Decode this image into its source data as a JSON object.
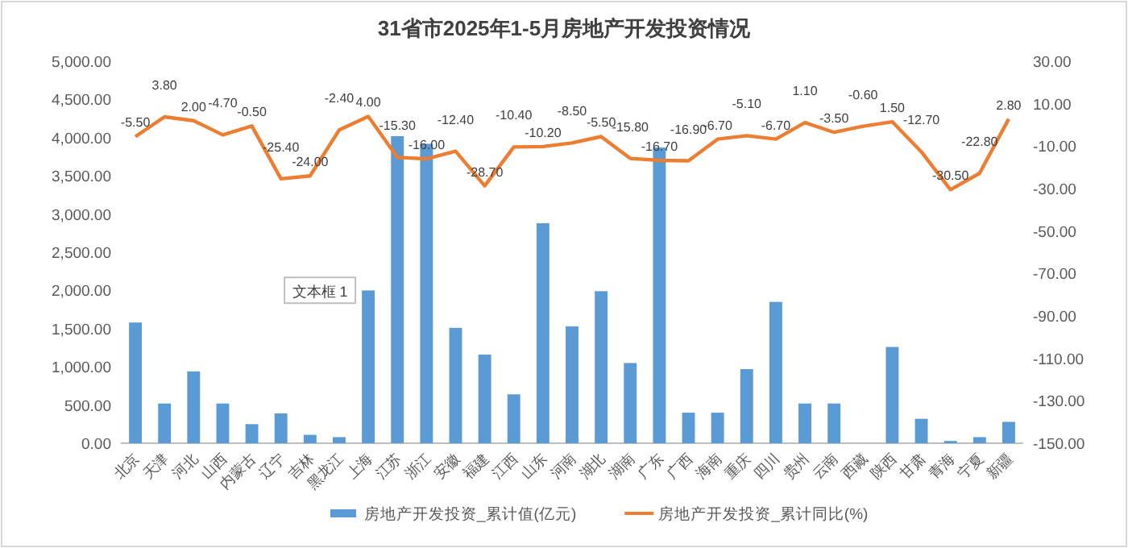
{
  "chart_data": {
    "type": "bar",
    "title": "31省市2025年1-5月房地产开发投资情况",
    "categories": [
      "北京",
      "天津",
      "河北",
      "山西",
      "内蒙古",
      "辽宁",
      "吉林",
      "黑龙江",
      "上海",
      "江苏",
      "浙江",
      "安徽",
      "福建",
      "江西",
      "山东",
      "河南",
      "湖北",
      "湖南",
      "广东",
      "广西",
      "海南",
      "重庆",
      "四川",
      "贵州",
      "云南",
      "西藏",
      "陕西",
      "甘肃",
      "青海",
      "宁夏",
      "新疆"
    ],
    "series": [
      {
        "name": "房地产开发投资_累计值(亿元)",
        "color": "#5b9bd5",
        "values": [
          1580,
          520,
          940,
          520,
          250,
          390,
          110,
          80,
          2000,
          4020,
          3920,
          1510,
          1160,
          640,
          2880,
          1530,
          1990,
          1050,
          3870,
          400,
          400,
          970,
          1850,
          520,
          520,
          null,
          1260,
          320,
          30,
          80,
          280
        ]
      },
      {
        "name": "房地产开发投资_累计同比(%)",
        "type": "line",
        "axis": "y2",
        "color": "#ed7d31",
        "marker": "none",
        "values": [
          -5.5,
          3.8,
          2.0,
          -4.7,
          -0.5,
          -25.4,
          -24.0,
          -2.4,
          4.0,
          -15.3,
          -16.0,
          -12.4,
          -28.7,
          -10.4,
          -10.2,
          -8.5,
          -5.5,
          -15.8,
          -16.7,
          -16.9,
          -6.7,
          -5.1,
          -6.7,
          1.1,
          -3.5,
          -0.6,
          1.5,
          -12.7,
          -30.5,
          -22.8,
          2.8
        ],
        "value_labels": [
          "-5.50",
          "3.80",
          "2.00",
          "-4.70",
          "-0.50",
          "-25.40",
          "-24.00",
          "-2.40",
          "4.00",
          "-15.30",
          "-16.00",
          "-12.40",
          "-28.70",
          "-10.40",
          "-10.20",
          "-8.50",
          "-5.50",
          "-15.80",
          "-16.70",
          "-16.90",
          "-6.70",
          "-5.10",
          "-6.70",
          "1.10",
          "-3.50",
          "-0.60",
          "1.50",
          "-12.70",
          "-30.50",
          "-22.80",
          "2.80"
        ]
      }
    ],
    "ylim": [
      0,
      5000
    ],
    "yticks": [
      {
        "value": 0,
        "label": "0.00"
      },
      {
        "value": 500,
        "label": "500.00"
      },
      {
        "value": 1000,
        "label": "1,000.00"
      },
      {
        "value": 1500,
        "label": "1,500.00"
      },
      {
        "value": 2000,
        "label": "2,000.00"
      },
      {
        "value": 2500,
        "label": "2,500.00"
      },
      {
        "value": 3000,
        "label": "3,000.00"
      },
      {
        "value": 3500,
        "label": "3,500.00"
      },
      {
        "value": 4000,
        "label": "4,000.00"
      },
      {
        "value": 4500,
        "label": "4,500.00"
      },
      {
        "value": 5000,
        "label": "5,000.00"
      }
    ],
    "y2lim": [
      -150,
      30
    ],
    "y2ticks": [
      {
        "value": -150,
        "label": "-150.00"
      },
      {
        "value": -130,
        "label": "-130.00"
      },
      {
        "value": -110,
        "label": "-110.00"
      },
      {
        "value": -90,
        "label": "-90.00"
      },
      {
        "value": -70,
        "label": "-70.00"
      },
      {
        "value": -50,
        "label": "-50.00"
      },
      {
        "value": -30,
        "label": "-30.00"
      },
      {
        "value": -10,
        "label": "-10.00"
      },
      {
        "value": 10,
        "label": "10.00"
      },
      {
        "value": 30,
        "label": "30.00"
      }
    ],
    "annotations": [
      {
        "text": "文本框 1",
        "x": "上海",
        "y": 1960
      }
    ],
    "legend": "bottom",
    "grid": false
  }
}
